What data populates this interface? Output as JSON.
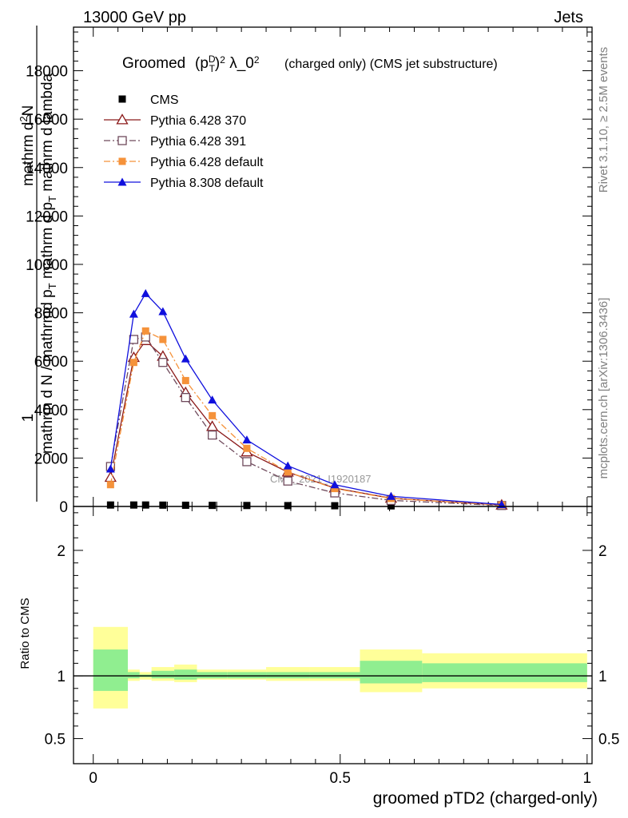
{
  "header": {
    "energy_label": "13000 GeV pp",
    "process_label": "Jets",
    "rivet_label": "Rivet 3.1.10, ≥ 2.5M events",
    "mcplots_label": "mcplots.cern.ch [arXiv:1306.3436]",
    "analysis_watermark": "CMS_2021_I1920187"
  },
  "chart_data": {
    "type": "line",
    "title": "(charged only) (CMS jet substructure)",
    "title_prefix": "Groomed",
    "title_math": "(p_T^D)^2 λ_0^2",
    "xlabel": "groomed pTD2 (charged-only)",
    "ylabel_main": "1 / mathrm d N / mathrmd p_T mathrm d p_T mathrm d lambda   mathrm d^2 N",
    "ylabel_ratio": "Ratio to CMS",
    "xlim": [
      -0.04,
      1.01
    ],
    "ylim": [
      0,
      19800
    ],
    "ratio_ylim": [
      0.3,
      2.35
    ],
    "x_ticks": [
      0,
      0.5,
      1
    ],
    "x_tick_labels": [
      "0",
      "0.5",
      "1"
    ],
    "y_ticks": [
      0,
      2000,
      4000,
      6000,
      8000,
      10000,
      12000,
      14000,
      16000,
      18000
    ],
    "y_tick_labels": [
      "0",
      "2000",
      "4000",
      "6000",
      "8000",
      "10000",
      "12000",
      "14000",
      "16000",
      "18000"
    ],
    "ratio_ticks": [
      0.5,
      1,
      2
    ],
    "ratio_tick_labels": [
      "0.5",
      "1",
      "2"
    ],
    "grid": false,
    "legend_position": "top-left",
    "series": [
      {
        "name": "CMS",
        "color": "#000000",
        "marker": "filled-square",
        "line": "none",
        "x": [
          0.035,
          0.082,
          0.106,
          0.141,
          0.187,
          0.241,
          0.311,
          0.394,
          0.489,
          0.603,
          0.827
        ],
        "values": [
          60,
          60,
          60,
          55,
          50,
          45,
          40,
          35,
          30,
          25,
          20
        ]
      },
      {
        "name": "Pythia 6.428 370",
        "color": "#8b1a1a",
        "marker": "open-triangle",
        "line": "solid",
        "x": [
          0.035,
          0.082,
          0.106,
          0.141,
          0.187,
          0.241,
          0.311,
          0.394,
          0.489,
          0.603,
          0.827
        ],
        "values": [
          1200,
          6150,
          6850,
          6200,
          4700,
          3300,
          2250,
          1420,
          760,
          340,
          55
        ]
      },
      {
        "name": "Pythia 6.428 391",
        "color": "#6f4a5c",
        "marker": "open-square",
        "line": "dash-dot",
        "x": [
          0.035,
          0.082,
          0.106,
          0.141,
          0.187,
          0.241,
          0.311,
          0.394,
          0.489,
          0.603,
          0.827
        ],
        "values": [
          1650,
          6900,
          7000,
          5950,
          4500,
          2950,
          1850,
          1050,
          560,
          250,
          40
        ]
      },
      {
        "name": "Pythia 6.428 default",
        "color": "#f5923a",
        "marker": "filled-square",
        "line": "dash-dot",
        "x": [
          0.035,
          0.082,
          0.106,
          0.141,
          0.187,
          0.241,
          0.311,
          0.394,
          0.489,
          0.603,
          0.827
        ],
        "values": [
          900,
          5950,
          7250,
          6900,
          5200,
          3750,
          2400,
          1430,
          740,
          330,
          60
        ]
      },
      {
        "name": "Pythia 8.308 default",
        "color": "#1010dd",
        "marker": "filled-triangle",
        "line": "solid",
        "x": [
          0.035,
          0.082,
          0.106,
          0.141,
          0.187,
          0.241,
          0.311,
          0.394,
          0.489,
          0.603,
          0.827
        ],
        "values": [
          1550,
          7950,
          8800,
          8050,
          6100,
          4400,
          2750,
          1680,
          900,
          420,
          80
        ]
      }
    ],
    "ratio_bands": {
      "bin_edges": [
        0.0,
        0.07,
        0.094,
        0.118,
        0.164,
        0.21,
        0.272,
        0.35,
        0.438,
        0.54,
        0.666,
        1.0
      ],
      "outer_low": [
        0.74,
        0.96,
        0.97,
        0.96,
        0.95,
        0.97,
        0.97,
        0.96,
        0.96,
        0.87,
        0.9
      ],
      "outer_high": [
        1.39,
        1.05,
        1.03,
        1.07,
        1.09,
        1.05,
        1.05,
        1.07,
        1.07,
        1.21,
        1.18
      ],
      "inner_low": [
        0.88,
        0.98,
        0.99,
        0.98,
        0.97,
        0.98,
        0.98,
        0.98,
        0.98,
        0.94,
        0.95
      ],
      "inner_high": [
        1.21,
        1.03,
        1.01,
        1.04,
        1.05,
        1.03,
        1.03,
        1.03,
        1.03,
        1.12,
        1.1
      ],
      "outer_color": "#ffff99",
      "inner_color": "#90ee90"
    }
  }
}
